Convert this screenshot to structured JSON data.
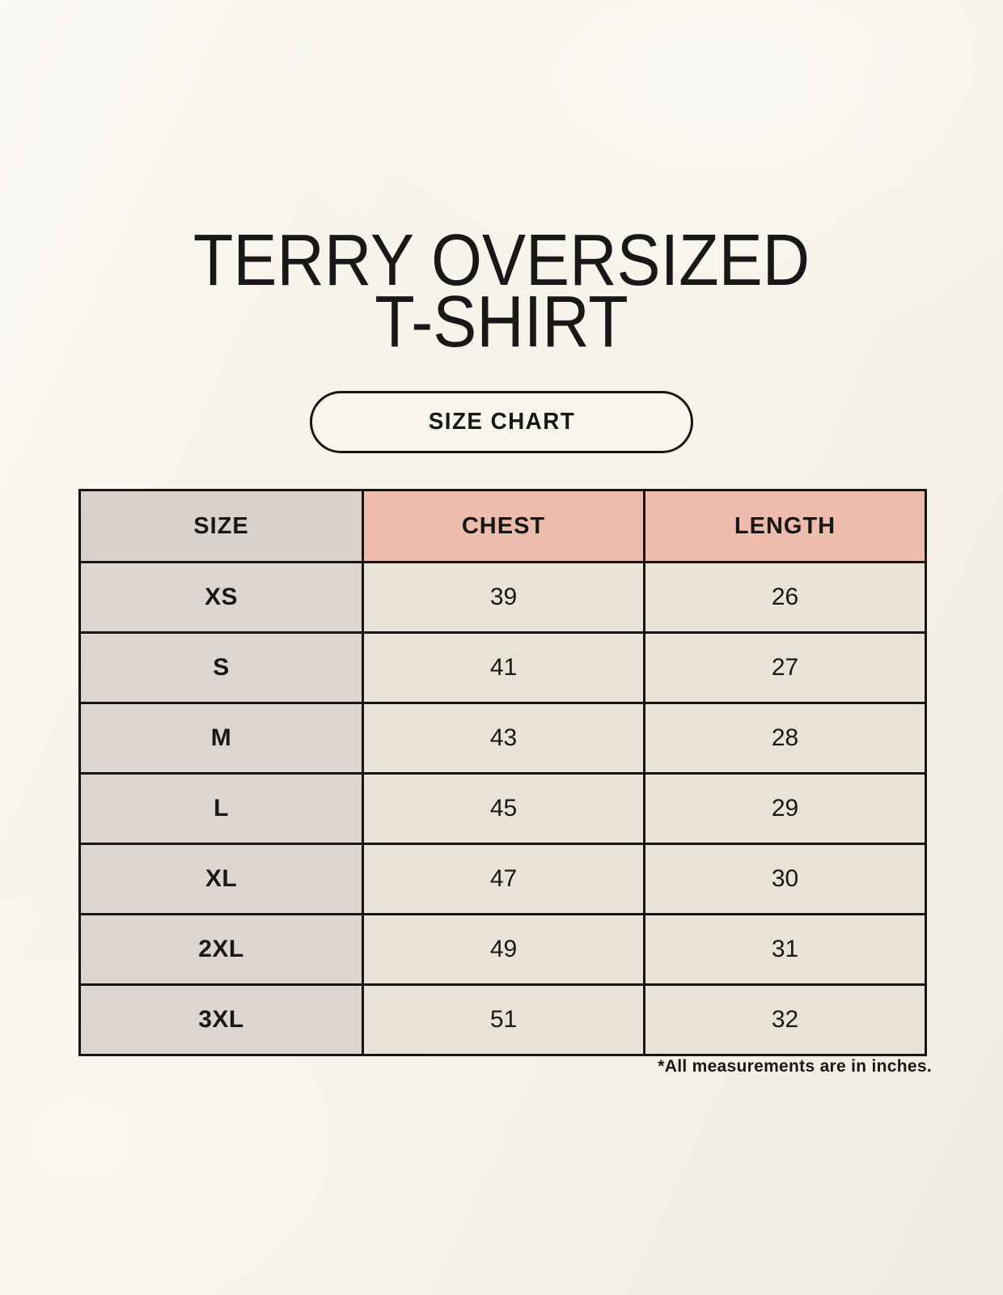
{
  "header": {
    "title_line1": "TERRY OVERSIZED",
    "title_line2": "T-SHIRT"
  },
  "size_chart_button": {
    "label": "SIZE CHART"
  },
  "chart_data": {
    "type": "table",
    "title": "TERRY OVERSIZED T-SHIRT",
    "columns": [
      "SIZE",
      "CHEST",
      "LENGTH"
    ],
    "rows": [
      {
        "size": "XS",
        "chest": "39",
        "length": "26"
      },
      {
        "size": "S",
        "chest": "41",
        "length": "27"
      },
      {
        "size": "M",
        "chest": "43",
        "length": "28"
      },
      {
        "size": "L",
        "chest": "45",
        "length": "29"
      },
      {
        "size": "XL",
        "chest": "47",
        "length": "30"
      },
      {
        "size": "2XL",
        "chest": "49",
        "length": "31"
      },
      {
        "size": "3XL",
        "chest": "51",
        "length": "32"
      }
    ],
    "units": "inches"
  },
  "footer": {
    "note": "*All measurements are in inches."
  },
  "colors": {
    "page_background": "#f7f3ea",
    "size_header_bg": "#d8d1cc",
    "measure_header_bg": "#eebcac",
    "size_column_bg": "#dcd5d0",
    "value_cell_bg": "#e9e2d6",
    "border": "#171512",
    "text": "#181818"
  }
}
